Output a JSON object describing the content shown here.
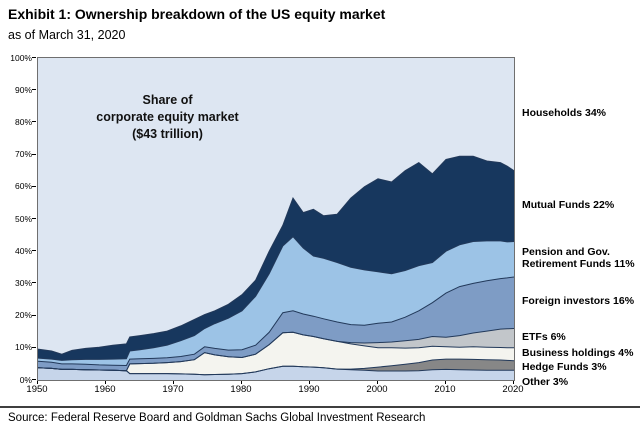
{
  "title": "Exhibit 1: Ownership breakdown of the US equity market",
  "subtitle": "as of March 31, 2020",
  "source": "Source: Federal Reserve Board and Goldman Sachs Global Investment Research",
  "annotation": "Share of\ncorporate equity market\n($43 trillion)",
  "axes": {
    "y_ticks": [
      "0%",
      "10%",
      "20%",
      "30%",
      "40%",
      "50%",
      "60%",
      "70%",
      "80%",
      "90%",
      "100%"
    ],
    "x_ticks": [
      1950,
      1960,
      1970,
      1980,
      1990,
      2000,
      2010,
      2020
    ],
    "x_range": [
      1950,
      2020
    ],
    "y_range": [
      0,
      100
    ]
  },
  "colors": {
    "plot_border": "#6f6f6f",
    "band_outline": "#22395a",
    "axis": "#000000"
  },
  "legend": [
    {
      "key": "households",
      "text": "Households 34%"
    },
    {
      "key": "mutual_funds",
      "text": "Mutual Funds 22%"
    },
    {
      "key": "pension_gov_retirement",
      "text": "Pension and Gov.\nRetirement Funds 11%"
    },
    {
      "key": "foreign_investors",
      "text": "Foreign investors 16%"
    },
    {
      "key": "etfs",
      "text": "ETFs 6%"
    },
    {
      "key": "business_holdings",
      "text": "Business holdings 4%"
    },
    {
      "key": "hedge_funds",
      "text": "Hedge Funds 3%"
    },
    {
      "key": "other",
      "text": "Other 3%"
    }
  ],
  "chart_data": {
    "type": "area",
    "stacked": true,
    "units": "% of US corporate equity market",
    "grid": false,
    "legend_position": "right-margin",
    "households_remainder": {
      "key": "households",
      "label": "Households",
      "share_2020": 34,
      "color": "#dde6f2"
    },
    "x": [
      1950,
      1952,
      1953.5,
      1955,
      1957,
      1959,
      1961,
      1963,
      1963.5,
      1965,
      1967,
      1969,
      1971,
      1973,
      1974.5,
      1976,
      1978,
      1980,
      1982,
      1984,
      1986,
      1987.5,
      1989,
      1990.5,
      1992,
      1994,
      1996,
      1998,
      2000,
      2002,
      2004,
      2006,
      2008,
      2010,
      2012,
      2014,
      2016,
      2018,
      2019,
      2020
    ],
    "series": [
      {
        "key": "other",
        "label": "Other",
        "share_2020": 3,
        "color": "#c6d5ea",
        "values": [
          3.8,
          3.6,
          3.3,
          3.3,
          3.2,
          3.1,
          3.0,
          2.9,
          2.0,
          2.0,
          2.0,
          2.0,
          1.9,
          1.8,
          1.6,
          1.7,
          1.8,
          2.0,
          2.5,
          3.5,
          4.3,
          4.3,
          4.1,
          4.0,
          3.8,
          3.4,
          3.2,
          3.0,
          2.8,
          2.8,
          2.8,
          2.9,
          3.2,
          3.3,
          3.2,
          3.1,
          3.0,
          3.0,
          3.0,
          3.0
        ]
      },
      {
        "key": "hedge_funds",
        "label": "Hedge Funds",
        "share_2020": 3,
        "color": "#878787",
        "values": [
          0,
          0,
          0,
          0,
          0,
          0,
          0,
          0,
          0,
          0,
          0,
          0,
          0,
          0,
          0,
          0,
          0,
          0,
          0,
          0,
          0,
          0,
          0,
          0,
          0,
          0,
          0.2,
          0.6,
          1.2,
          1.6,
          2.1,
          2.5,
          3.0,
          3.2,
          3.3,
          3.3,
          3.3,
          3.2,
          3.1,
          3.0
        ]
      },
      {
        "key": "business_holdings",
        "label": "Business holdings",
        "share_2020": 4,
        "color": "#f4f4ef",
        "values": [
          0,
          0,
          0,
          0,
          0,
          0,
          0,
          0,
          3.0,
          3.1,
          3.2,
          3.4,
          3.8,
          4.5,
          6.9,
          6.1,
          5.4,
          5.0,
          5.5,
          7.5,
          10.4,
          10.5,
          9.9,
          9.5,
          9.0,
          8.6,
          7.8,
          7.0,
          6.0,
          5.6,
          5.0,
          4.6,
          4.3,
          3.8,
          3.7,
          3.9,
          3.9,
          3.9,
          3.9,
          4.0
        ]
      },
      {
        "key": "etfs",
        "label": "ETFs",
        "share_2020": 6,
        "color": "#c2c6ca",
        "values": [
          0,
          0,
          0,
          0,
          0,
          0,
          0,
          0,
          0,
          0,
          0,
          0,
          0,
          0,
          0,
          0,
          0,
          0,
          0,
          0,
          0,
          0,
          0,
          0,
          0,
          0,
          0.4,
          0.9,
          1.6,
          1.8,
          2.3,
          2.6,
          3.0,
          3.0,
          3.6,
          4.3,
          5.0,
          5.7,
          5.9,
          6.0
        ]
      },
      {
        "key": "foreign_investors",
        "label": "Foreign investors",
        "share_2020": 16,
        "color": "#7e9cc5",
        "values": [
          2.0,
          1.9,
          1.7,
          1.7,
          1.7,
          1.6,
          1.6,
          1.6,
          1.5,
          1.5,
          1.5,
          1.5,
          1.6,
          1.7,
          1.8,
          2.0,
          2.1,
          2.4,
          2.8,
          3.8,
          6.2,
          6.7,
          6.5,
          6.3,
          6.2,
          6.0,
          5.6,
          5.5,
          6.0,
          6.2,
          7.3,
          8.9,
          10.5,
          13.7,
          15.2,
          15.4,
          15.6,
          15.7,
          15.8,
          16.0
        ]
      },
      {
        "key": "pension_gov_retirement",
        "label": "Pension and Gov. Retirement Funds",
        "share_2020": 11,
        "color": "#9cc3e6",
        "values": [
          1.0,
          1.0,
          1.1,
          1.3,
          1.5,
          1.7,
          1.9,
          2.1,
          2.5,
          2.8,
          3.3,
          3.9,
          4.9,
          5.8,
          5.7,
          7.7,
          9.9,
          12.1,
          15.2,
          18.2,
          20.7,
          23.0,
          20.5,
          18.7,
          18.8,
          18.5,
          17.8,
          17.2,
          16.0,
          15.0,
          14.5,
          14.0,
          12.5,
          13.0,
          13.0,
          13.0,
          12.4,
          11.7,
          11.2,
          11.0
        ]
      },
      {
        "key": "mutual_funds",
        "label": "Mutual Funds",
        "share_2020": 22,
        "color": "#17375e",
        "values": [
          2.8,
          2.5,
          1.9,
          2.9,
          3.4,
          3.8,
          4.3,
          4.6,
          4.4,
          4.4,
          4.4,
          4.4,
          4.6,
          5.0,
          4.3,
          4.0,
          4.3,
          5.0,
          5.0,
          7.0,
          6.4,
          12.0,
          11.0,
          14.5,
          13.2,
          15.0,
          21.5,
          25.8,
          28.9,
          28.5,
          31.0,
          32.0,
          27.5,
          28.5,
          27.5,
          26.5,
          24.8,
          24.3,
          23.5,
          22.0
        ]
      }
    ]
  }
}
